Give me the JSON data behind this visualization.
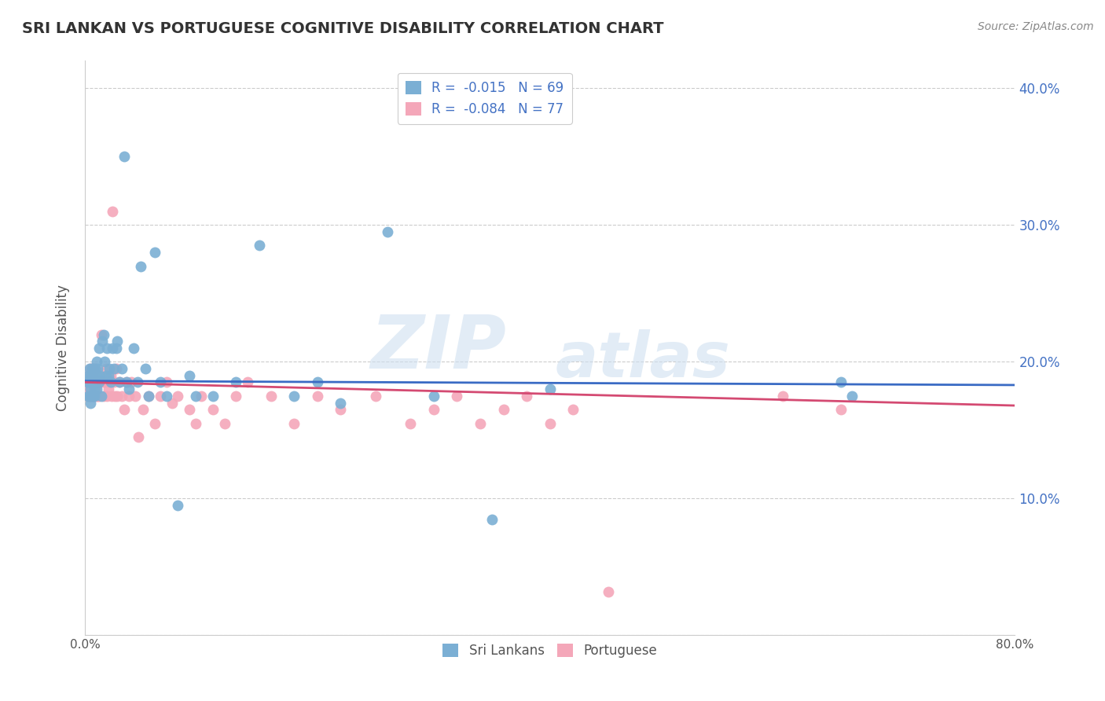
{
  "title": "SRI LANKAN VS PORTUGUESE COGNITIVE DISABILITY CORRELATION CHART",
  "source": "Source: ZipAtlas.com",
  "ylabel": "Cognitive Disability",
  "xlabel": "",
  "xlim": [
    0.0,
    0.8
  ],
  "ylim": [
    0.0,
    0.42
  ],
  "xticks": [
    0.0,
    0.1,
    0.2,
    0.3,
    0.4,
    0.5,
    0.6,
    0.7,
    0.8
  ],
  "yticks": [
    0.0,
    0.1,
    0.2,
    0.3,
    0.4
  ],
  "ytick_labels": [
    "",
    "10.0%",
    "20.0%",
    "30.0%",
    "40.0%"
  ],
  "xtick_labels": [
    "0.0%",
    "",
    "",
    "",
    "",
    "",
    "",
    "",
    "80.0%"
  ],
  "sri_lankan_color": "#7bafd4",
  "portuguese_color": "#f4a7b9",
  "sri_lankan_R": "-0.015",
  "sri_lankan_N": "69",
  "portuguese_R": "-0.084",
  "portuguese_N": "77",
  "legend_label_1": "Sri Lankans",
  "legend_label_2": "Portuguese",
  "watermark_zip": "ZIP",
  "watermark_atlas": "atlas",
  "sri_lankan_x": [
    0.002,
    0.003,
    0.003,
    0.004,
    0.004,
    0.004,
    0.005,
    0.005,
    0.005,
    0.005,
    0.006,
    0.006,
    0.006,
    0.007,
    0.007,
    0.007,
    0.008,
    0.008,
    0.008,
    0.009,
    0.009,
    0.01,
    0.01,
    0.01,
    0.011,
    0.012,
    0.012,
    0.013,
    0.014,
    0.015,
    0.016,
    0.017,
    0.018,
    0.019,
    0.02,
    0.021,
    0.022,
    0.024,
    0.025,
    0.027,
    0.028,
    0.03,
    0.032,
    0.034,
    0.036,
    0.038,
    0.042,
    0.045,
    0.048,
    0.052,
    0.055,
    0.06,
    0.065,
    0.07,
    0.08,
    0.09,
    0.095,
    0.11,
    0.13,
    0.15,
    0.18,
    0.2,
    0.22,
    0.26,
    0.3,
    0.35,
    0.4,
    0.65,
    0.66
  ],
  "sri_lankan_y": [
    0.185,
    0.19,
    0.175,
    0.185,
    0.175,
    0.195,
    0.18,
    0.17,
    0.19,
    0.185,
    0.175,
    0.185,
    0.195,
    0.175,
    0.185,
    0.195,
    0.18,
    0.19,
    0.175,
    0.185,
    0.195,
    0.18,
    0.19,
    0.2,
    0.195,
    0.185,
    0.21,
    0.19,
    0.175,
    0.215,
    0.22,
    0.2,
    0.19,
    0.21,
    0.19,
    0.195,
    0.185,
    0.21,
    0.195,
    0.21,
    0.215,
    0.185,
    0.195,
    0.35,
    0.185,
    0.18,
    0.21,
    0.185,
    0.27,
    0.195,
    0.175,
    0.28,
    0.185,
    0.175,
    0.095,
    0.19,
    0.175,
    0.175,
    0.185,
    0.285,
    0.175,
    0.185,
    0.17,
    0.295,
    0.175,
    0.085,
    0.18,
    0.185,
    0.175
  ],
  "portuguese_x": [
    0.002,
    0.003,
    0.003,
    0.004,
    0.004,
    0.004,
    0.005,
    0.005,
    0.005,
    0.006,
    0.006,
    0.006,
    0.007,
    0.007,
    0.008,
    0.008,
    0.009,
    0.009,
    0.01,
    0.01,
    0.011,
    0.012,
    0.012,
    0.013,
    0.014,
    0.015,
    0.016,
    0.017,
    0.018,
    0.019,
    0.02,
    0.021,
    0.022,
    0.023,
    0.024,
    0.025,
    0.026,
    0.027,
    0.028,
    0.03,
    0.032,
    0.034,
    0.036,
    0.038,
    0.04,
    0.043,
    0.046,
    0.05,
    0.055,
    0.06,
    0.065,
    0.07,
    0.075,
    0.08,
    0.09,
    0.095,
    0.1,
    0.11,
    0.12,
    0.13,
    0.14,
    0.16,
    0.18,
    0.2,
    0.22,
    0.25,
    0.28,
    0.3,
    0.32,
    0.34,
    0.36,
    0.38,
    0.4,
    0.42,
    0.45,
    0.6,
    0.65
  ],
  "portuguese_y": [
    0.185,
    0.175,
    0.19,
    0.18,
    0.185,
    0.175,
    0.185,
    0.195,
    0.175,
    0.185,
    0.175,
    0.19,
    0.185,
    0.195,
    0.175,
    0.185,
    0.18,
    0.195,
    0.175,
    0.185,
    0.175,
    0.19,
    0.175,
    0.185,
    0.22,
    0.185,
    0.175,
    0.185,
    0.195,
    0.175,
    0.18,
    0.185,
    0.19,
    0.175,
    0.31,
    0.185,
    0.175,
    0.195,
    0.175,
    0.185,
    0.175,
    0.165,
    0.185,
    0.175,
    0.185,
    0.175,
    0.145,
    0.165,
    0.175,
    0.155,
    0.175,
    0.185,
    0.17,
    0.175,
    0.165,
    0.155,
    0.175,
    0.165,
    0.155,
    0.175,
    0.185,
    0.175,
    0.155,
    0.175,
    0.165,
    0.175,
    0.155,
    0.165,
    0.175,
    0.155,
    0.165,
    0.175,
    0.155,
    0.165,
    0.032,
    0.175,
    0.165
  ],
  "sl_line_x": [
    0.0,
    0.8
  ],
  "sl_line_y": [
    0.186,
    0.183
  ],
  "pt_line_x": [
    0.0,
    0.8
  ],
  "pt_line_y": [
    0.185,
    0.168
  ]
}
